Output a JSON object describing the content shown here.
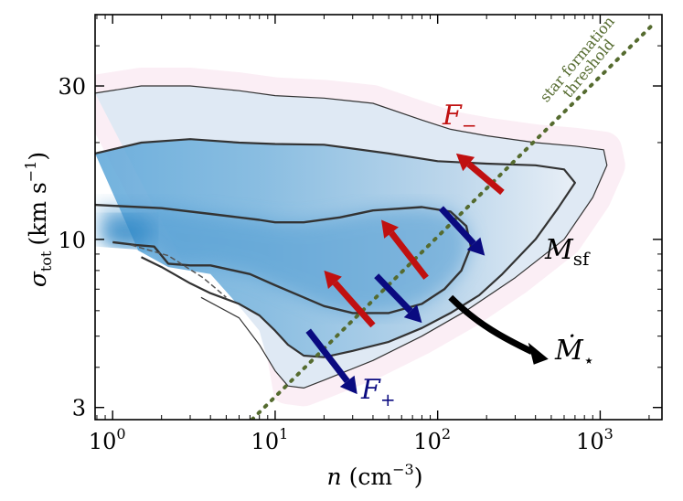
{
  "chart_data": {
    "type": "heatmap",
    "x_scale": "log",
    "y_scale": "log",
    "xlim": [
      0.78,
      2400
    ],
    "ylim": [
      2.75,
      50
    ],
    "xlabel_var": "n",
    "xlabel_unit": "(cm",
    "xlabel_unit_exp": "−3",
    "xlabel_close": ")",
    "ylabel_var": "σ",
    "ylabel_sub": "tot",
    "ylabel_unit": "(km s",
    "ylabel_unit_exp": "−1",
    "ylabel_close": ")",
    "x_ticks": [
      {
        "value": 1,
        "base": "10",
        "exp": "0"
      },
      {
        "value": 10,
        "base": "10",
        "exp": "1"
      },
      {
        "value": 100,
        "base": "10",
        "exp": "2"
      },
      {
        "value": 1000,
        "base": "10",
        "exp": "3"
      }
    ],
    "y_ticks": [
      {
        "value": 3,
        "label": "3"
      },
      {
        "value": 10,
        "label": "10"
      },
      {
        "value": 30,
        "label": "30"
      }
    ],
    "threshold_line": {
      "label_line1": "star formation",
      "label_line2": "threshold",
      "color": "#556b2f",
      "points": [
        [
          7.2,
          2.75
        ],
        [
          2150,
          47
        ]
      ]
    },
    "contours": [
      {
        "level": "outer",
        "points": [
          [
            0.78,
            28.5
          ],
          [
            1.5,
            30
          ],
          [
            3,
            30
          ],
          [
            6,
            29
          ],
          [
            10,
            28
          ],
          [
            20,
            27.5
          ],
          [
            40,
            26.5
          ],
          [
            80,
            23.5
          ],
          [
            120,
            22
          ],
          [
            200,
            21
          ],
          [
            400,
            20
          ],
          [
            700,
            19.5
          ],
          [
            1050,
            19
          ],
          [
            1100,
            17
          ],
          [
            900,
            13.5
          ],
          [
            600,
            10
          ],
          [
            300,
            7.6
          ],
          [
            150,
            6
          ],
          [
            80,
            5
          ],
          [
            40,
            4.2
          ],
          [
            20,
            3.65
          ],
          [
            15,
            3.45
          ],
          [
            12,
            3.5
          ],
          [
            10,
            3.9
          ],
          [
            8,
            4.7
          ],
          [
            6,
            5.7
          ],
          [
            3.5,
            6.6
          ]
        ]
      },
      {
        "level": "middle",
        "points": [
          [
            0.78,
            18.5
          ],
          [
            1.5,
            20
          ],
          [
            3,
            20.5
          ],
          [
            6,
            20
          ],
          [
            10,
            19.8
          ],
          [
            20,
            19.7
          ],
          [
            50,
            18.5
          ],
          [
            100,
            17.5
          ],
          [
            200,
            17.2
          ],
          [
            400,
            17
          ],
          [
            600,
            16.5
          ],
          [
            700,
            15
          ],
          [
            550,
            12.5
          ],
          [
            400,
            10
          ],
          [
            250,
            7.8
          ],
          [
            180,
            6.7
          ],
          [
            120,
            5.9
          ],
          [
            80,
            5.3
          ],
          [
            50,
            4.8
          ],
          [
            30,
            4.5
          ],
          [
            20,
            4.3
          ],
          [
            15,
            4.35
          ],
          [
            12,
            4.7
          ],
          [
            10,
            5.2
          ],
          [
            8,
            5.8
          ],
          [
            6,
            6.3
          ],
          [
            4,
            6.8
          ],
          [
            3,
            7.3
          ],
          [
            2,
            8.2
          ],
          [
            1.5,
            8.8
          ]
        ]
      },
      {
        "level": "inner",
        "points": [
          [
            0.78,
            12.8
          ],
          [
            2,
            12.5
          ],
          [
            4,
            12
          ],
          [
            6,
            11.7
          ],
          [
            8,
            11.5
          ],
          [
            10,
            11.3
          ],
          [
            15,
            11.3
          ],
          [
            25,
            11.7
          ],
          [
            40,
            12.3
          ],
          [
            80,
            12.6
          ],
          [
            120,
            12.2
          ],
          [
            150,
            11
          ],
          [
            160,
            9.5
          ],
          [
            140,
            8
          ],
          [
            110,
            7
          ],
          [
            80,
            6.3
          ],
          [
            50,
            5.9
          ],
          [
            30,
            5.9
          ],
          [
            20,
            6.2
          ],
          [
            15,
            6.6
          ],
          [
            10,
            7.2
          ],
          [
            7,
            7.8
          ],
          [
            4,
            8.3
          ],
          [
            3,
            8.3
          ],
          [
            2.2,
            8.4
          ],
          [
            1.8,
            9.5
          ],
          [
            1.4,
            9.6
          ],
          [
            1,
            9.8
          ]
        ]
      }
    ],
    "contour_labels": [
      {
        "text": "M",
        "sub": "sf",
        "color": "#000000"
      }
    ],
    "arrows": [
      {
        "label": "F",
        "label_sub": "−",
        "color": "#c01010",
        "dir": "up-left"
      },
      {
        "label": "F",
        "label_sub": "+",
        "color": "#0a0a80",
        "dir": "down-right"
      },
      {
        "label": "Ṁ",
        "label_sub": "⋆",
        "color": "#000000",
        "dir": "curved"
      }
    ],
    "arrow_segments": [
      {
        "series": "F-",
        "from": [
          250,
          14
        ],
        "to": [
          130,
          18.5
        ]
      },
      {
        "series": "F-",
        "from": [
          85,
          7.6
        ],
        "to": [
          45,
          11.5
        ]
      },
      {
        "series": "F-",
        "from": [
          40,
          5.4
        ],
        "to": [
          20,
          8
        ]
      },
      {
        "series": "F+",
        "from": [
          105,
          12.5
        ],
        "to": [
          195,
          8.9
        ]
      },
      {
        "series": "F+",
        "from": [
          42,
          7.7
        ],
        "to": [
          80,
          5.5
        ]
      },
      {
        "series": "F+",
        "from": [
          16,
          5.2
        ],
        "to": [
          32,
          3.3
        ]
      }
    ],
    "colors": {
      "density_dark": "#2a84c4",
      "density_light": "#e6eef6",
      "background_haze": "#fbeef5",
      "contour": "#333333"
    }
  }
}
